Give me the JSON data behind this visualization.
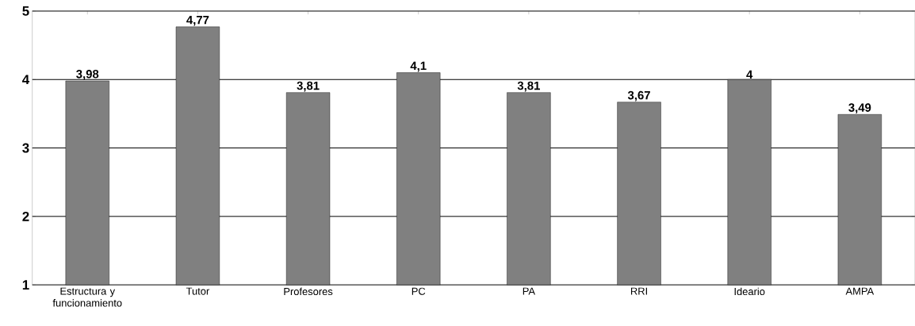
{
  "chart_data": {
    "type": "bar",
    "categories": [
      "Estructura y funcionamiento",
      "Tutor",
      "Profesores",
      "PC",
      "PA",
      "RRI",
      "Ideario",
      "AMPA"
    ],
    "values": [
      3.98,
      4.77,
      3.81,
      4.1,
      3.81,
      3.67,
      4,
      3.49
    ],
    "value_labels": [
      "3,98",
      "4,77",
      "3,81",
      "4,1",
      "3,81",
      "3,67",
      "4",
      "3,49"
    ],
    "color": "#808080",
    "ylim": [
      1,
      5
    ],
    "yticks": [
      1,
      2,
      3,
      4,
      5
    ],
    "grid": "y"
  }
}
